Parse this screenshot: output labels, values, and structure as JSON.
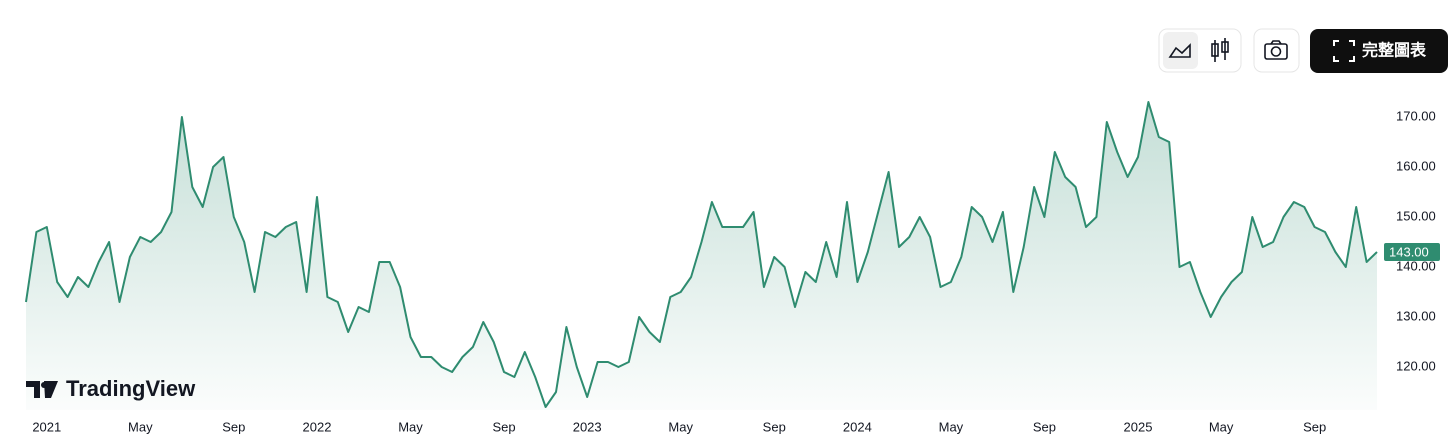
{
  "chart_data": {
    "type": "line",
    "watermark": "TradingView",
    "toolbar": {
      "full_chart": "完整圖表"
    },
    "color": "#2f8c70",
    "categories": [
      null,
      null,
      "2021",
      null,
      null,
      null,
      null,
      null,
      null,
      null,
      null,
      "May",
      null,
      null,
      null,
      null,
      null,
      null,
      null,
      null,
      "Sep",
      null,
      null,
      null,
      null,
      null,
      null,
      null,
      "2022",
      null,
      null,
      null,
      null,
      null,
      null,
      null,
      null,
      "May",
      null,
      null,
      null,
      null,
      null,
      null,
      null,
      null,
      "Sep",
      null,
      null,
      null,
      null,
      null,
      null,
      null,
      "2023",
      null,
      null,
      null,
      null,
      null,
      null,
      null,
      null,
      "May",
      null,
      null,
      null,
      null,
      null,
      null,
      null,
      null,
      "Sep",
      null,
      null,
      null,
      null,
      null,
      null,
      null,
      "2024",
      null,
      null,
      null,
      null,
      null,
      null,
      null,
      null,
      "May",
      null,
      null,
      null,
      null,
      null,
      null,
      null,
      null,
      "Sep",
      null,
      null,
      null,
      null,
      null,
      null,
      null,
      null,
      "2025",
      null,
      null,
      null,
      null,
      null,
      null,
      null,
      "May",
      null,
      null,
      null,
      null,
      null,
      null,
      null,
      null,
      "Sep",
      null,
      null,
      null,
      null,
      null,
      null
    ],
    "values": [
      133,
      147,
      148,
      137,
      134,
      138,
      136,
      141,
      145,
      133,
      142,
      146,
      145,
      147,
      151,
      170,
      156,
      152,
      160,
      162,
      150,
      145,
      135,
      147,
      146,
      148,
      149,
      135,
      154,
      134,
      133,
      127,
      132,
      131,
      141,
      141,
      136,
      126,
      122,
      122,
      120,
      119,
      122,
      124,
      129,
      125,
      119,
      118,
      123,
      118,
      112,
      115,
      128,
      120,
      114,
      121,
      121,
      120,
      121,
      130,
      127,
      125,
      134,
      135,
      138,
      145,
      153,
      148,
      148,
      148,
      151,
      136,
      142,
      140,
      132,
      139,
      137,
      145,
      138,
      153,
      137,
      143,
      151,
      159,
      144,
      146,
      150,
      146,
      136,
      137,
      142,
      152,
      150,
      145,
      151,
      135,
      144,
      156,
      150,
      163,
      158,
      156,
      148,
      150,
      169,
      163,
      158,
      162,
      173,
      166,
      165,
      140,
      141,
      135,
      130,
      134,
      137,
      139,
      150,
      144,
      145,
      150,
      153,
      152,
      148,
      147,
      143,
      140,
      152,
      141,
      143
    ],
    "last_price": {
      "value": 143,
      "label": "143.00"
    },
    "ylim": [
      111.4,
      175.4
    ],
    "yticks": [
      {
        "value": 120,
        "label": "120.00"
      },
      {
        "value": 130,
        "label": "130.00"
      },
      {
        "value": 140,
        "label": "140.00"
      },
      {
        "value": 150,
        "label": "150.00"
      },
      {
        "value": 160,
        "label": "160.00"
      },
      {
        "value": 170,
        "label": "170.00"
      }
    ]
  }
}
